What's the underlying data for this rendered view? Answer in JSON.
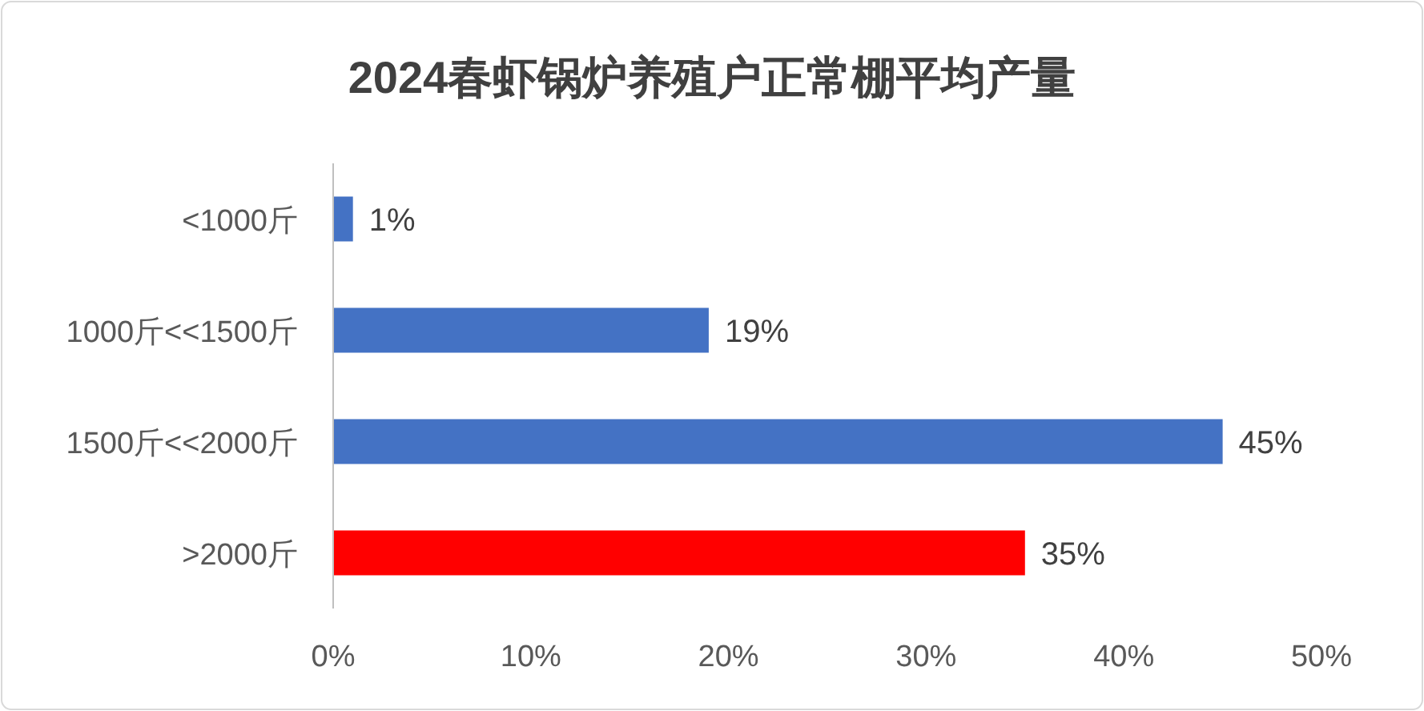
{
  "chart_data": {
    "type": "bar",
    "orientation": "horizontal",
    "title": "2024春虾锅炉养殖户正常棚平均产量",
    "categories": [
      "<1000斤",
      "1000斤<<1500斤",
      "1500斤<<2000斤",
      ">2000斤"
    ],
    "values": [
      1,
      19,
      45,
      35
    ],
    "colors": [
      "#4472c4",
      "#4472c4",
      "#4472c4",
      "#ff0000"
    ],
    "value_labels": [
      "1%",
      "19%",
      "45%",
      "35%"
    ],
    "xlim": [
      0,
      50
    ],
    "xticks": [
      {
        "value": 0,
        "label": "0%"
      },
      {
        "value": 10,
        "label": "10%"
      },
      {
        "value": 20,
        "label": "20%"
      },
      {
        "value": 30,
        "label": "30%"
      },
      {
        "value": 40,
        "label": "40%"
      },
      {
        "value": 50,
        "label": "50%"
      }
    ],
    "grid": false
  }
}
